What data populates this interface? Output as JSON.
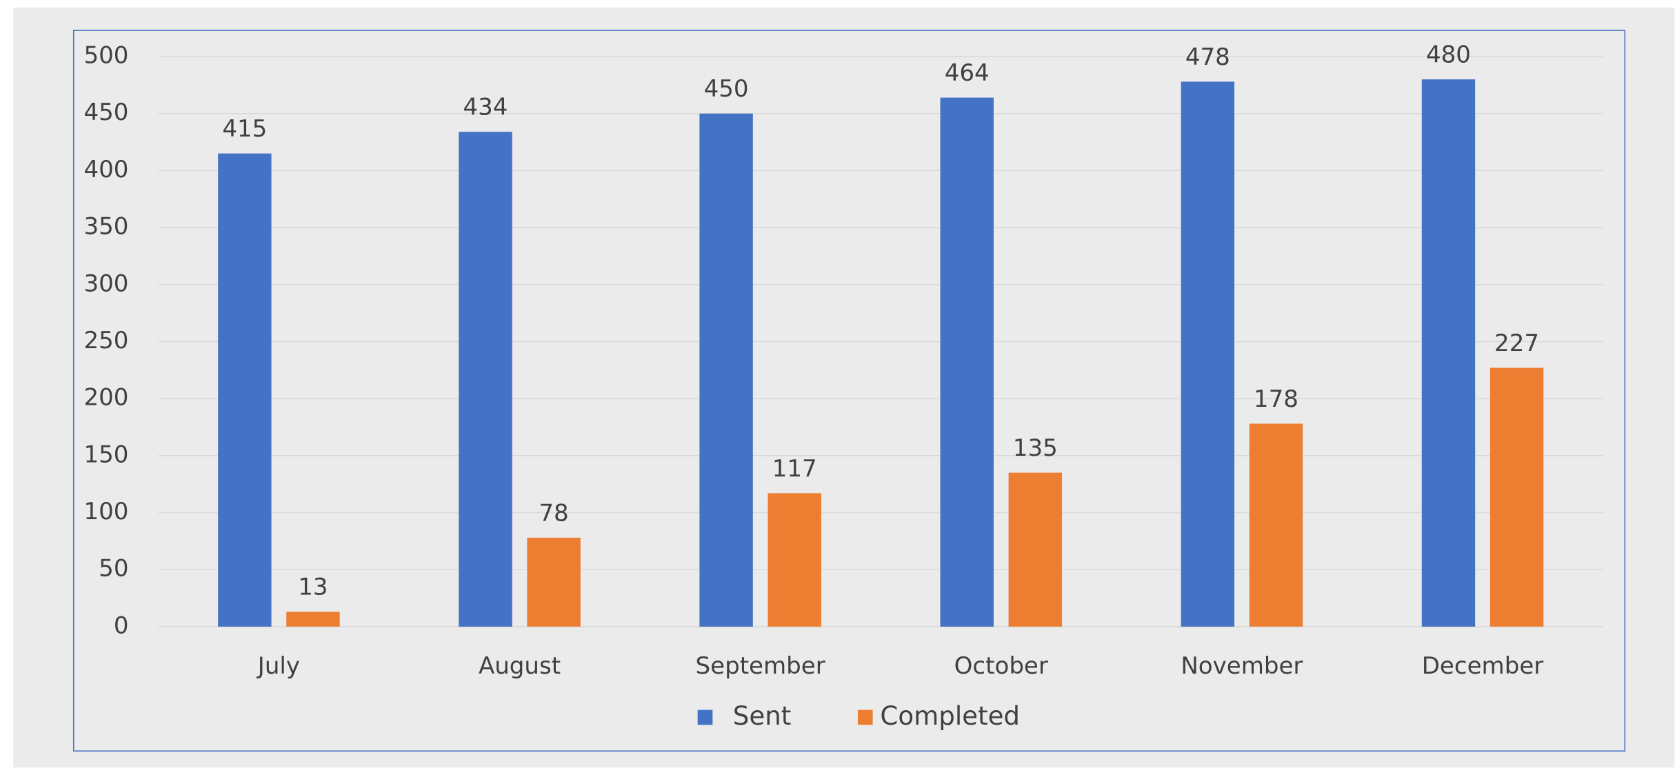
{
  "chart_data": {
    "type": "bar",
    "categories": [
      "July",
      "August",
      "September",
      "October",
      "November",
      "December"
    ],
    "series": [
      {
        "name": "Sent",
        "color": "#4472c4",
        "values": [
          415,
          434,
          450,
          464,
          478,
          480
        ]
      },
      {
        "name": "Completed",
        "color": "#ed7d31",
        "values": [
          13,
          78,
          117,
          135,
          178,
          227
        ]
      }
    ],
    "ylim": [
      0,
      500
    ],
    "yticks": [
      0,
      50,
      100,
      150,
      200,
      250,
      300,
      350,
      400,
      450,
      500
    ],
    "grid": true,
    "data_labels": true,
    "legend": "bottom"
  }
}
